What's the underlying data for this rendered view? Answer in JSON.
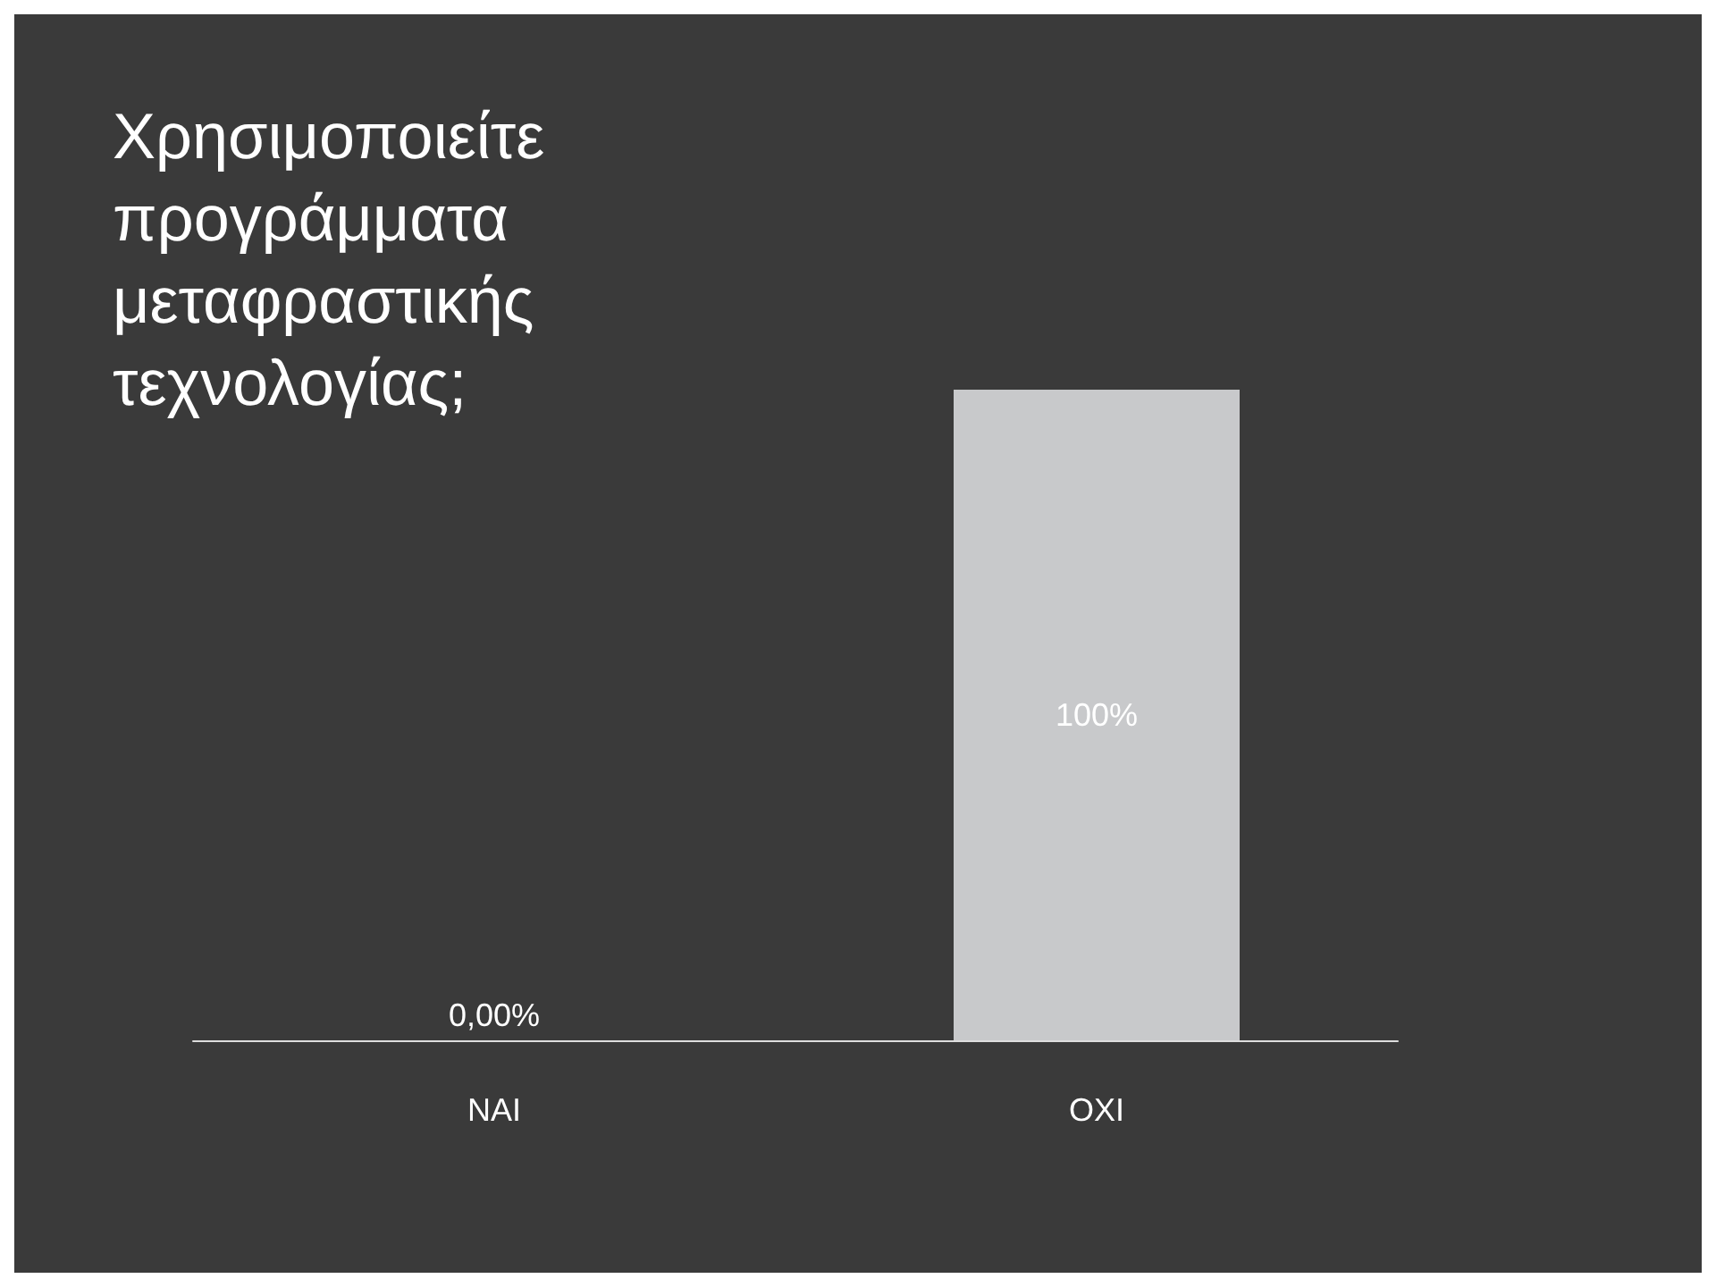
{
  "chart_data": {
    "type": "bar",
    "title": "Χρησιμοποιείτε προγράμματα μεταφραστικής τεχνολογίας;",
    "categories": [
      "NAI",
      "OXI"
    ],
    "values": [
      0,
      100
    ],
    "colors": [
      "#6e9a3c",
      "#c8c9cb"
    ],
    "value_labels": [
      "0,00%",
      "100%"
    ]
  }
}
